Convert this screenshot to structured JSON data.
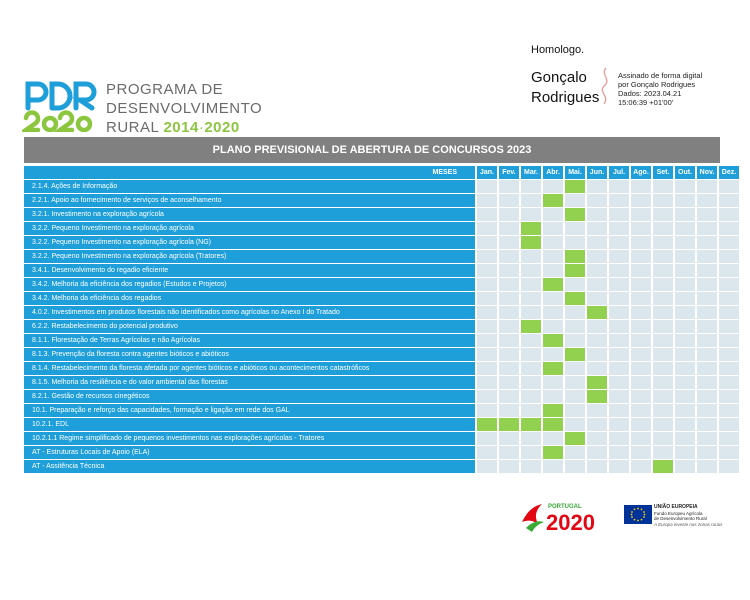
{
  "signature": {
    "approval": "Homologo.",
    "name_line1": "Gonçalo",
    "name_line2": "Rodrigues",
    "details": [
      "Assinado de forma digital",
      "por Gonçalo Rodrigues",
      "Dados: 2023.04.21",
      "15:06:39 +01'00'"
    ]
  },
  "header_logo": {
    "logo_text": "PDR 2020",
    "line1": "PROGRAMA DE",
    "line2": "DESENVOLVIMENTO",
    "line3_prefix": "RURAL",
    "line3_year1": "2014",
    "line3_sep": "·",
    "line3_year2": "2020",
    "colors": {
      "blue": "#1f9fd9",
      "green": "#8cc63f",
      "gray": "#6b6b6b"
    }
  },
  "table": {
    "title": "PLANO PREVISIONAL DE ABERTURA DE CONCURSOS 2023",
    "meses_label": "MESES",
    "months": [
      "Jan.",
      "Fev.",
      "Mar.",
      "Abr.",
      "Mai.",
      "Jun.",
      "Jul.",
      "Ago.",
      "Set.",
      "Out.",
      "Nov.",
      "Dez."
    ],
    "colors": {
      "header": "#1f9fd9",
      "title_bar": "#808080",
      "active": "#92d050",
      "empty": "#dce6ed"
    },
    "rows": [
      {
        "label": "2.1.4.  Ações de Informação",
        "active_months": [
          5
        ]
      },
      {
        "label": "2.2.1.  Apoio ao fornecimento de serviços de aconselhamento",
        "active_months": [
          4
        ]
      },
      {
        "label": "3.2.1.  Investimento na exploração agrícola",
        "active_months": [
          5
        ]
      },
      {
        "label": "3.2.2.  Pequeno Investimento na exploração agrícola",
        "active_months": [
          3
        ]
      },
      {
        "label": "3.2.2.  Pequeno Investimento na exploração agrícola (NG)",
        "active_months": [
          3
        ]
      },
      {
        "label": "3.2.2.  Pequeno Investimento na exploração agrícola (Tratores)",
        "active_months": [
          5
        ]
      },
      {
        "label": "3.4.1.  Desenvolvimento do regadio eficiente",
        "active_months": [
          5
        ]
      },
      {
        "label": "3.4.2.  Melhoria da eficiência dos regadios (Estudos e Projetos)",
        "active_months": [
          4
        ]
      },
      {
        "label": "3.4.2.  Melhoria da eficiência dos regadios",
        "active_months": [
          5
        ]
      },
      {
        "label": "4.0.2.  Investimentos em produtos florestais não identificados como agrícolas no Anexo I do Tratado",
        "active_months": [
          6
        ]
      },
      {
        "label": "6.2.2.  Restabelecimento do potencial produtivo",
        "active_months": [
          3
        ]
      },
      {
        "label": "8.1.1.  Florestação de Terras Agrícolas e não Agrícolas",
        "active_months": [
          4
        ]
      },
      {
        "label": "8.1.3.  Prevenção da floresta contra agentes bióticos e abióticos",
        "active_months": [
          5
        ]
      },
      {
        "label": "8.1.4.  Restabelecimento da floresta afetada por agentes  bióticos e abióticos ou acontecimentos catastróficos",
        "active_months": [
          4
        ]
      },
      {
        "label": "8.1.5.  Melhoria da resiliência e do valor ambiental das florestas",
        "active_months": [
          6
        ]
      },
      {
        "label": "8.2.1.  Gestão de recursos cinegéticos",
        "active_months": [
          6
        ]
      },
      {
        "label": "10.1.  Preparação e reforço das capacidades, formação e ligação em rede dos GAL",
        "active_months": [
          4
        ]
      },
      {
        "label": "10.2.1.  EDL",
        "active_months": [
          1,
          2,
          3,
          4
        ]
      },
      {
        "label": "10.2.1.1  Regime simplificado de pequenos investimentos nas explorações agrícolas - Tratores",
        "active_months": [
          5
        ]
      },
      {
        "label": "AT - Estruturas Locais de Apoio (ELA)",
        "active_months": [
          4
        ]
      },
      {
        "label": "AT - Assitência Técnica",
        "active_months": [
          9
        ]
      }
    ]
  },
  "footer": {
    "portugal_label": "PORTUGAL",
    "portugal_number": "2020",
    "eu_title": "UNIÃO EUROPEIA",
    "eu_fund_line1": "Fundo Europeu Agrícola",
    "eu_fund_line2": "de Desenvolvimento Rural",
    "eu_motto": "A Europa investe nas zonas rurais"
  }
}
